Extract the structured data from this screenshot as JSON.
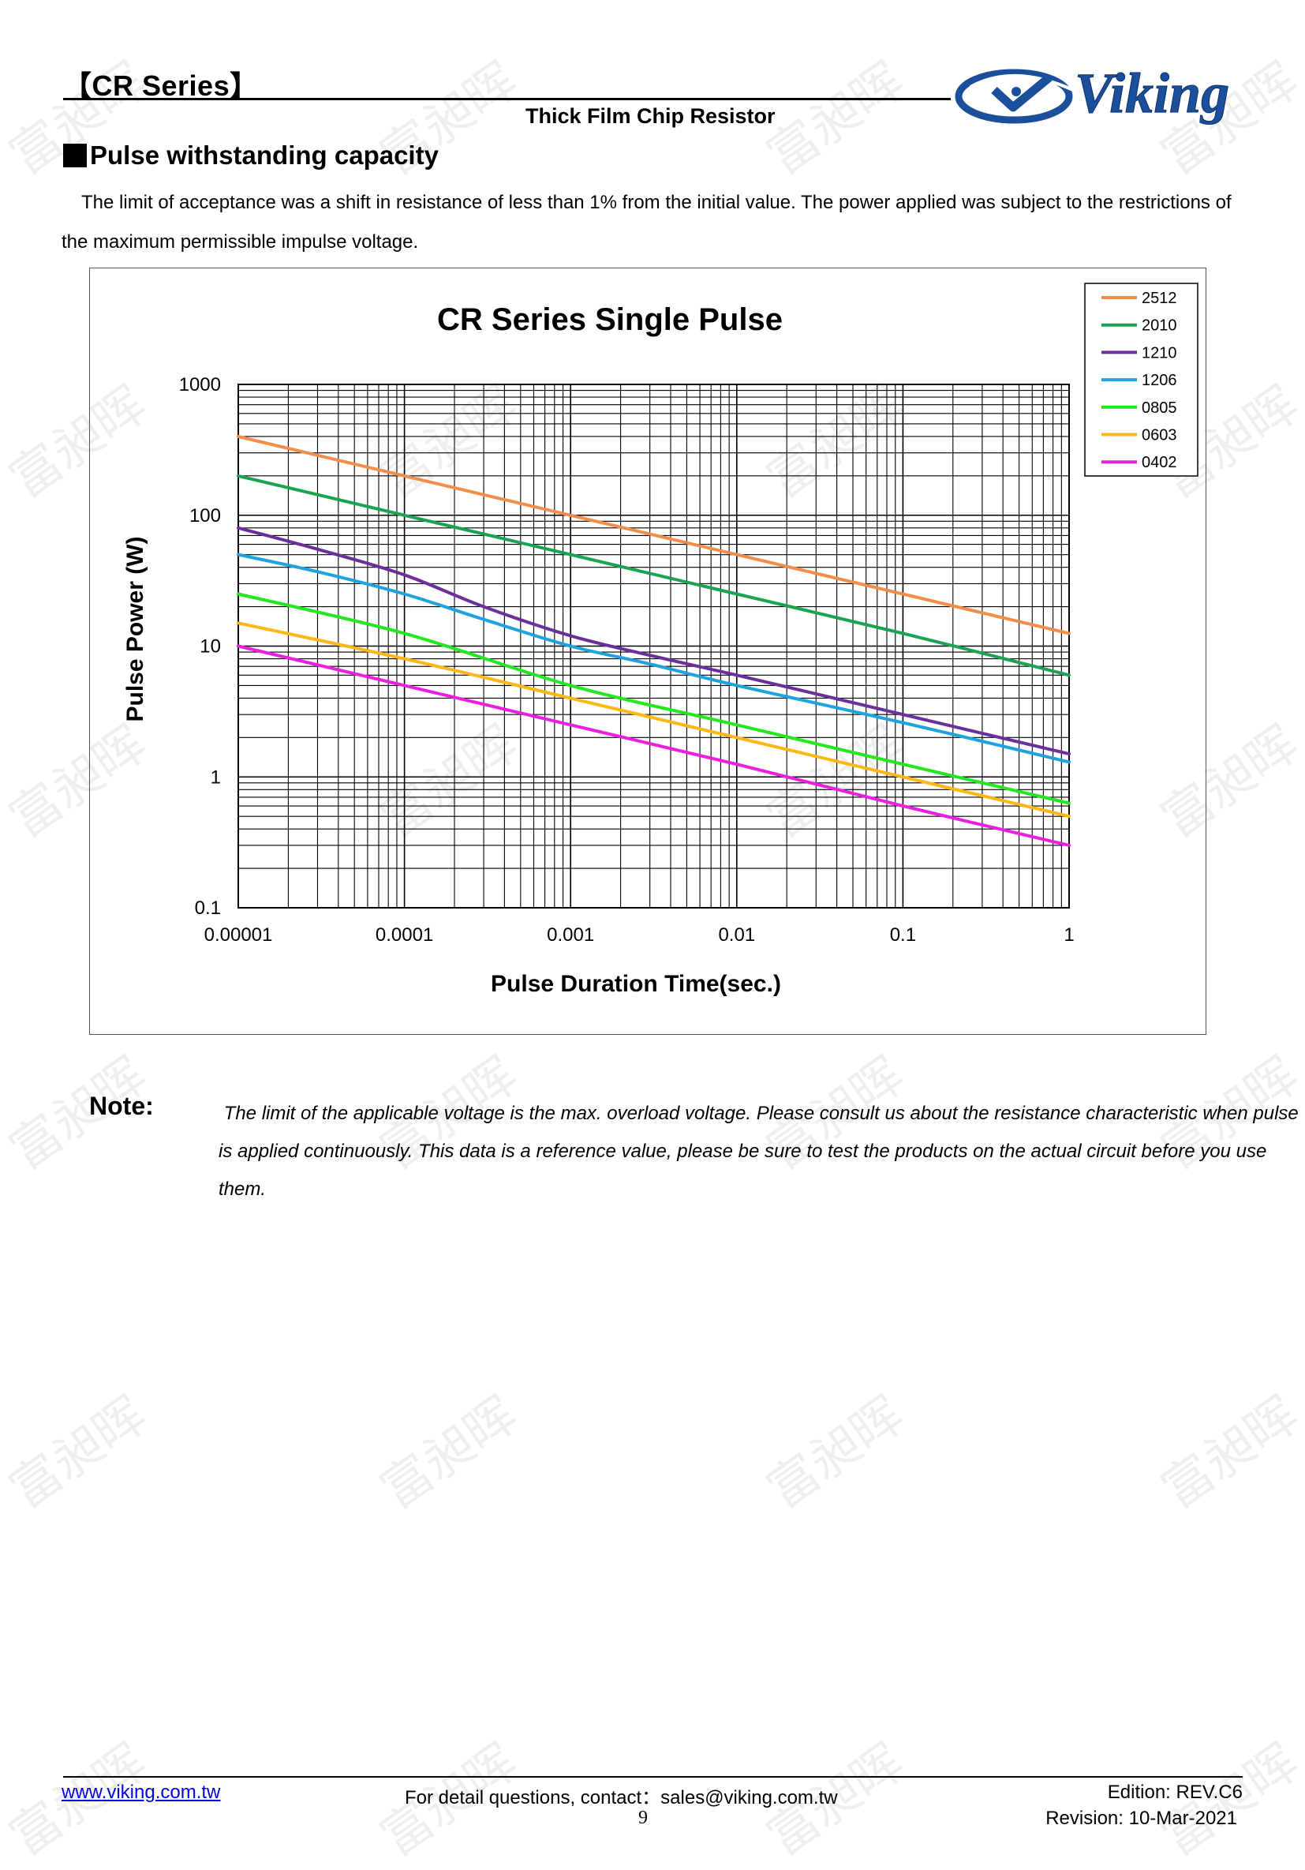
{
  "header": {
    "series_title": "【CR Series】",
    "subtitle": "Thick Film Chip Resistor",
    "logo_text": "Viking"
  },
  "section": {
    "title": "Pulse withstanding capacity",
    "intro": "The limit of acceptance was a shift in resistance of less than 1% from the initial value. The power applied was subject to the restrictions of the maximum permissible impulse voltage."
  },
  "chart_data": {
    "type": "line",
    "title": "CR Series Single Pulse",
    "xlabel": "Pulse Duration Time(sec.)",
    "ylabel": "Pulse Power (W)",
    "x_scale": "log",
    "y_scale": "log",
    "xlim": [
      1e-05,
      1
    ],
    "ylim": [
      0.1,
      1000
    ],
    "x_ticks": [
      "0.00001",
      "0.0001",
      "0.001",
      "0.01",
      "0.1",
      "1"
    ],
    "y_ticks": [
      "0.1",
      "1",
      "10",
      "100",
      "1000"
    ],
    "grid": true,
    "legend_position": "top-right",
    "series": [
      {
        "name": "2512",
        "color": "#f28e4a",
        "x": [
          1e-05,
          0.0001,
          0.001,
          0.01,
          0.1,
          1
        ],
        "y": [
          400,
          200,
          100,
          50,
          25,
          12.5
        ]
      },
      {
        "name": "2010",
        "color": "#1aa352",
        "x": [
          1e-05,
          0.0001,
          0.001,
          0.01,
          0.1,
          1
        ],
        "y": [
          200,
          100,
          50,
          25,
          12.5,
          6
        ]
      },
      {
        "name": "1210",
        "color": "#6a2f9a",
        "x": [
          1e-05,
          3e-05,
          0.0001,
          0.0003,
          0.001,
          0.003,
          0.01,
          0.1,
          1
        ],
        "y": [
          80,
          55,
          35,
          20,
          12,
          8.5,
          6,
          3,
          1.5
        ]
      },
      {
        "name": "1206",
        "color": "#1ea3e0",
        "x": [
          1e-05,
          3e-05,
          0.0001,
          0.0003,
          0.001,
          0.003,
          0.01,
          0.1,
          1
        ],
        "y": [
          50,
          37,
          25,
          16,
          10,
          7.3,
          5,
          2.6,
          1.3
        ]
      },
      {
        "name": "0805",
        "color": "#22e81e",
        "x": [
          1e-05,
          0.0001,
          0.001,
          0.01,
          0.1,
          1
        ],
        "y": [
          25,
          12.5,
          5,
          2.5,
          1.25,
          0.63
        ]
      },
      {
        "name": "0603",
        "color": "#fdb813",
        "x": [
          1e-05,
          0.0001,
          0.001,
          0.01,
          0.1,
          1
        ],
        "y": [
          15,
          8,
          4,
          2,
          1,
          0.5
        ]
      },
      {
        "name": "0402",
        "color": "#ee1ee0",
        "x": [
          1e-05,
          0.0001,
          0.001,
          0.01,
          0.1,
          1
        ],
        "y": [
          10,
          5,
          2.5,
          1.25,
          0.6,
          0.3
        ]
      }
    ]
  },
  "note": {
    "label": "Note:",
    "text": "The limit of the applicable voltage is the max. overload voltage. Please consult us about the resistance characteristic when pulse is applied continuously. This data is a reference value, please be sure to test the products on the actual circuit before you use them."
  },
  "watermark": "富昶晖",
  "footer": {
    "website": "www.viking.com.tw",
    "contact": "For detail questions, contact：sales@viking.com.tw",
    "page": "9",
    "edition": "Edition: REV.C6",
    "revision": "Revision: 10-Mar-2021"
  },
  "colors": {
    "logo_blue": "#1a4f9c",
    "link": "#0000ee"
  }
}
